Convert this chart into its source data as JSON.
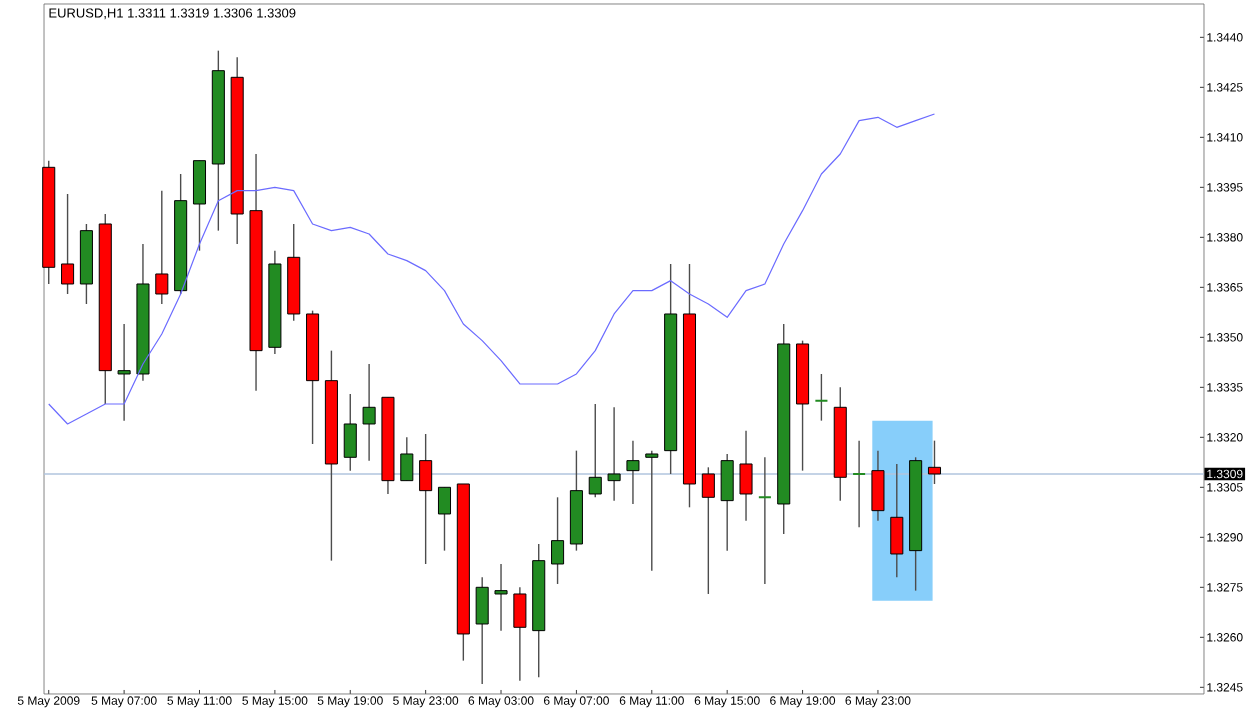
{
  "chart_data": {
    "type": "candlestick",
    "title": "EURUSD,H1 1.3311 1.3319 1.3306 1.3309",
    "categories": [
      "5 May 2009",
      null,
      null,
      null,
      "5 May 07:00",
      null,
      null,
      null,
      "5 May 11:00",
      null,
      null,
      null,
      "5 May 15:00",
      null,
      null,
      null,
      "5 May 19:00",
      null,
      null,
      null,
      "5 May 23:00",
      null,
      null,
      null,
      "6 May 03:00",
      null,
      null,
      null,
      "6 May 07:00",
      null,
      null,
      null,
      "6 May 11:00",
      null,
      null,
      null,
      "6 May 15:00",
      null,
      null,
      null,
      "6 May 19:00",
      null,
      null,
      null,
      "6 May 23:00",
      null,
      null,
      null
    ],
    "ohlc": [
      [
        1.3401,
        1.3403,
        1.3366,
        1.3371
      ],
      [
        1.3372,
        1.3393,
        1.3363,
        1.3366
      ],
      [
        1.3366,
        1.3384,
        1.336,
        1.3382
      ],
      [
        1.3384,
        1.3387,
        1.333,
        1.334
      ],
      [
        1.3339,
        1.3354,
        1.3325,
        1.334
      ],
      [
        1.3339,
        1.3378,
        1.3337,
        1.3366
      ],
      [
        1.3369,
        1.3394,
        1.336,
        1.3363
      ],
      [
        1.3364,
        1.3399,
        1.3363,
        1.3391
      ],
      [
        1.339,
        1.3403,
        1.3376,
        1.3403
      ],
      [
        1.3402,
        1.3436,
        1.3382,
        1.343
      ],
      [
        1.3428,
        1.3434,
        1.3378,
        1.3387
      ],
      [
        1.3388,
        1.3405,
        1.3334,
        1.3346
      ],
      [
        1.3347,
        1.3376,
        1.3345,
        1.3372
      ],
      [
        1.3374,
        1.3384,
        1.3355,
        1.3357
      ],
      [
        1.3357,
        1.3358,
        1.3318,
        1.3337
      ],
      [
        1.3337,
        1.3346,
        1.3283,
        1.3312
      ],
      [
        1.3314,
        1.3333,
        1.331,
        1.3324
      ],
      [
        1.3324,
        1.3342,
        1.3313,
        1.3329
      ],
      [
        1.3332,
        1.3332,
        1.3303,
        1.3307
      ],
      [
        1.3307,
        1.332,
        1.3307,
        1.3315
      ],
      [
        1.3313,
        1.3321,
        1.3282,
        1.3304
      ],
      [
        1.3297,
        1.3305,
        1.3286,
        1.3305
      ],
      [
        1.3306,
        1.3306,
        1.3253,
        1.3261
      ],
      [
        1.3264,
        1.3278,
        1.3246,
        1.3275
      ],
      [
        1.3273,
        1.3282,
        1.3262,
        1.3274
      ],
      [
        1.3273,
        1.3275,
        1.3247,
        1.3263
      ],
      [
        1.3262,
        1.3288,
        1.3248,
        1.3283
      ],
      [
        1.3282,
        1.3302,
        1.3276,
        1.3289
      ],
      [
        1.3288,
        1.3316,
        1.3286,
        1.3304
      ],
      [
        1.3303,
        1.333,
        1.3302,
        1.3308
      ],
      [
        1.3307,
        1.3329,
        1.3301,
        1.3309
      ],
      [
        1.331,
        1.3319,
        1.33,
        1.3313
      ],
      [
        1.3314,
        1.3316,
        1.328,
        1.3315
      ],
      [
        1.3316,
        1.3372,
        1.3309,
        1.3357
      ],
      [
        1.3357,
        1.3372,
        1.3299,
        1.3306
      ],
      [
        1.3309,
        1.3311,
        1.3273,
        1.3302
      ],
      [
        1.3301,
        1.3315,
        1.3286,
        1.3313
      ],
      [
        1.3312,
        1.3322,
        1.3295,
        1.3303
      ],
      [
        1.3302,
        1.3314,
        1.3276,
        1.3302
      ],
      [
        1.33,
        1.3354,
        1.3291,
        1.3348
      ],
      [
        1.3348,
        1.3349,
        1.331,
        1.333
      ],
      [
        1.3331,
        1.3339,
        1.3325,
        1.3331
      ],
      [
        1.3329,
        1.3335,
        1.3301,
        1.3308
      ],
      [
        1.3309,
        1.3319,
        1.3293,
        1.3309
      ],
      [
        1.331,
        1.3316,
        1.3295,
        1.3298
      ],
      [
        1.3296,
        1.3312,
        1.3278,
        1.3285
      ],
      [
        1.3286,
        1.3314,
        1.3274,
        1.3313
      ],
      [
        1.3311,
        1.3319,
        1.3306,
        1.3309
      ]
    ],
    "colors": [
      "#ff0000",
      "#ff0000",
      "#228b22",
      "#ff0000",
      "#228b22",
      "#228b22",
      "#ff0000",
      "#228b22",
      "#228b22",
      "#228b22",
      "#ff0000",
      "#ff0000",
      "#228b22",
      "#ff0000",
      "#ff0000",
      "#ff0000",
      "#228b22",
      "#228b22",
      "#ff0000",
      "#228b22",
      "#ff0000",
      "#228b22",
      "#ff0000",
      "#228b22",
      "#228b22",
      "#ff0000",
      "#228b22",
      "#228b22",
      "#228b22",
      "#228b22",
      "#228b22",
      "#228b22",
      "#228b22",
      "#228b22",
      "#ff0000",
      "#ff0000",
      "#228b22",
      "#ff0000",
      "#228b22",
      "#228b22",
      "#ff0000",
      "#228b22",
      "#ff0000",
      "#228b22",
      "#ff0000",
      "#ff0000",
      "#228b22",
      "#ff0000"
    ],
    "series": [
      {
        "type": "line",
        "color": "#6b6bff",
        "values": [
          1.333,
          1.3324,
          1.3327,
          1.333,
          1.333,
          1.3342,
          1.3351,
          1.3363,
          1.3378,
          1.3391,
          1.3394,
          1.3394,
          1.3395,
          1.3394,
          1.3384,
          1.3382,
          1.3383,
          1.3381,
          1.3375,
          1.3373,
          1.337,
          1.3364,
          1.3354,
          1.3349,
          1.3343,
          1.3336,
          1.3336,
          1.3336,
          1.3339,
          1.3346,
          1.3357,
          1.3364,
          1.3364,
          1.3367,
          1.3363,
          1.336,
          1.3356,
          1.3364,
          1.3366,
          1.3378,
          1.3388,
          1.3399,
          1.3405,
          1.3415,
          1.3416,
          1.3413,
          1.3415,
          1.3417
        ]
      }
    ],
    "ylim": [
      1.3243,
      1.345
    ],
    "yticks": [
      {
        "value": 1.3245,
        "label": "1.3245"
      },
      {
        "value": 1.326,
        "label": "1.3260"
      },
      {
        "value": 1.3275,
        "label": "1.3275"
      },
      {
        "value": 1.329,
        "label": "1.3290"
      },
      {
        "value": 1.3305,
        "label": "1.3305"
      },
      {
        "value": 1.332,
        "label": "1.3320"
      },
      {
        "value": 1.3335,
        "label": "1.3335"
      },
      {
        "value": 1.335,
        "label": "1.3350"
      },
      {
        "value": 1.3365,
        "label": "1.3365"
      },
      {
        "value": 1.338,
        "label": "1.3380"
      },
      {
        "value": 1.3395,
        "label": "1.3395"
      },
      {
        "value": 1.341,
        "label": "1.3410"
      },
      {
        "value": 1.3425,
        "label": "1.3425"
      },
      {
        "value": 1.344,
        "label": "1.3440"
      }
    ],
    "ref_lines": [
      {
        "axis": "y",
        "value": 1.3309,
        "label": "1.3309",
        "color": "#b0c4de"
      }
    ],
    "bands": [
      {
        "axis": "y",
        "from": 1.3271,
        "to": 1.3325,
        "color": "#87cefa"
      }
    ]
  }
}
